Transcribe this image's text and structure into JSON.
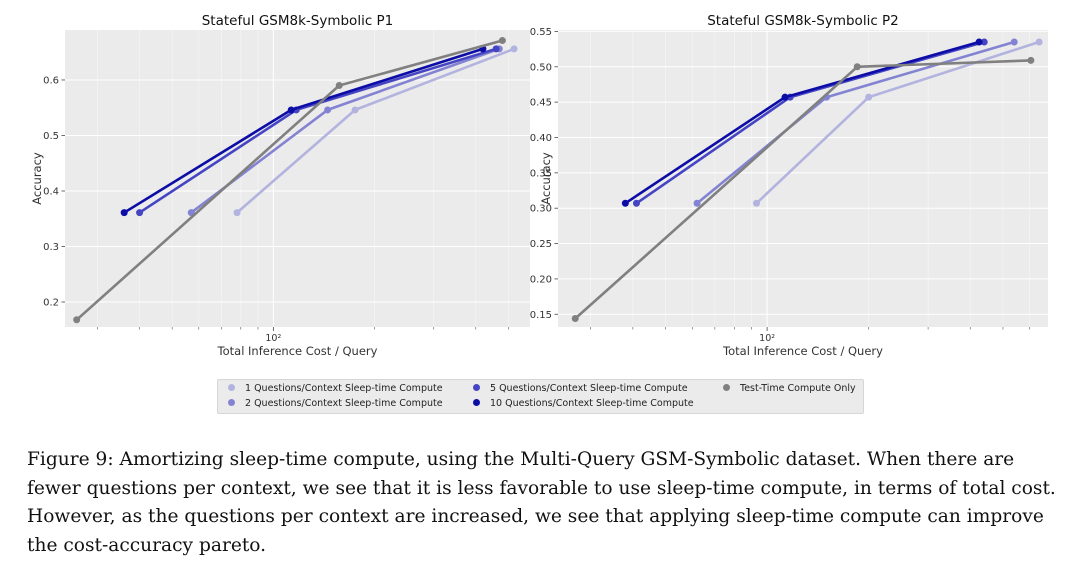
{
  "figure": {
    "caption": "Figure 9: Amortizing sleep-time compute, using the Multi-Query GSM-Symbolic dataset. When there are fewer questions per context, we see that it is less favorable to use sleep-time compute, in terms of total cost. However, as the questions per context are increased, we see that applying sleep-time compute can improve the cost-accuracy pareto."
  },
  "legend": {
    "placement": "bottom-center",
    "items": [
      {
        "label": "1 Questions/Context Sleep-time Compute",
        "color": "#b3b3df"
      },
      {
        "label": "2 Questions/Context Sleep-time Compute",
        "color": "#8383d3"
      },
      {
        "label": "5 Questions/Context Sleep-time Compute",
        "color": "#4545c4"
      },
      {
        "label": "10 Questions/Context Sleep-time Compute",
        "color": "#0c0ca6"
      },
      {
        "label": "Test-Time Compute Only",
        "color": "#808080"
      }
    ]
  },
  "chart_data": [
    {
      "type": "line",
      "title": "Stateful GSM8k-Symbolic P1",
      "xlabel": "Total Inference Cost / Query",
      "ylabel": "Accuracy",
      "xscale": "log",
      "xlim": [
        24,
        580
      ],
      "ylim": [
        0.155,
        0.69
      ],
      "xticks": [
        {
          "value": 100,
          "label": "10²"
        }
      ],
      "yticks": [
        0.2,
        0.3,
        0.4,
        0.5,
        0.6
      ],
      "grid": true,
      "series": [
        {
          "name": "1 Questions/Context Sleep-time Compute",
          "color": "#b3b3df",
          "x": [
            78,
            175,
            520
          ],
          "y": [
            0.361,
            0.546,
            0.656
          ]
        },
        {
          "name": "2 Questions/Context Sleep-time Compute",
          "color": "#8383d3",
          "x": [
            57,
            145,
            470
          ],
          "y": [
            0.361,
            0.546,
            0.656
          ]
        },
        {
          "name": "5 Questions/Context Sleep-time Compute",
          "color": "#4545c4",
          "x": [
            40,
            117,
            460
          ],
          "y": [
            0.361,
            0.546,
            0.656
          ]
        },
        {
          "name": "10 Questions/Context Sleep-time Compute",
          "color": "#0c0ca6",
          "x": [
            36,
            113,
            420
          ],
          "y": [
            0.361,
            0.546,
            0.656
          ]
        },
        {
          "name": "Test-Time Compute Only",
          "color": "#808080",
          "x": [
            26,
            157,
            480
          ],
          "y": [
            0.168,
            0.59,
            0.671
          ]
        }
      ]
    },
    {
      "type": "line",
      "title": "Stateful GSM8k-Symbolic P2",
      "xlabel": "Total Inference Cost / Query",
      "ylabel": "Accuracy",
      "xscale": "log",
      "xlim": [
        24,
        680
      ],
      "ylim": [
        0.132,
        0.552
      ],
      "xticks": [
        {
          "value": 100,
          "label": "10²"
        }
      ],
      "yticks": [
        0.15,
        0.2,
        0.25,
        0.3,
        0.35,
        0.4,
        0.45,
        0.5,
        0.55
      ],
      "grid": true,
      "series": [
        {
          "name": "1 Questions/Context Sleep-time Compute",
          "color": "#b3b3df",
          "x": [
            93,
            200,
            640
          ],
          "y": [
            0.307,
            0.457,
            0.535
          ]
        },
        {
          "name": "2 Questions/Context Sleep-time Compute",
          "color": "#8383d3",
          "x": [
            62,
            150,
            540
          ],
          "y": [
            0.307,
            0.457,
            0.535
          ]
        },
        {
          "name": "5 Questions/Context Sleep-time Compute",
          "color": "#4545c4",
          "x": [
            41,
            117,
            440
          ],
          "y": [
            0.307,
            0.457,
            0.535
          ]
        },
        {
          "name": "10 Questions/Context Sleep-time Compute",
          "color": "#0c0ca6",
          "x": [
            38,
            113,
            425
          ],
          "y": [
            0.307,
            0.457,
            0.535
          ]
        },
        {
          "name": "Test-Time Compute Only",
          "color": "#808080",
          "x": [
            27,
            185,
            605
          ],
          "y": [
            0.144,
            0.5,
            0.509
          ]
        }
      ]
    }
  ]
}
